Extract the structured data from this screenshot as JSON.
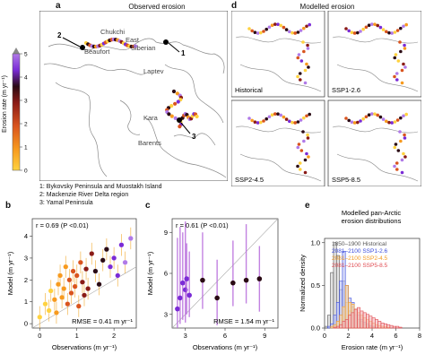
{
  "colors": {
    "scale": [
      "#ffd23f",
      "#f79a1e",
      "#d9541e",
      "#8a1b16",
      "#2a0a14",
      "#7a2bd6",
      "#b07ae8"
    ],
    "land": "#ffffff",
    "coast": "#8a8a8a",
    "line": "#999999",
    "hist": "#555555",
    "ssp126": "#3a4bdc",
    "ssp245": "#f29a22",
    "ssp585": "#e0484f",
    "ci_b": "#f2a41f",
    "ci_c": "#b86ddc"
  },
  "panel_a": {
    "letter": "a",
    "title": "Observed erosion",
    "colorbar_label": "Erosion rate (m yr⁻¹)",
    "colorbar_ticks": [
      "0",
      "1",
      "2",
      "3",
      "4",
      "5"
    ],
    "places": [
      "Chukchi",
      "East",
      "Siberian",
      "Laptev",
      "Beaufort",
      "Kara",
      "Barents"
    ],
    "markers": [
      "1",
      "2",
      "3"
    ],
    "notes": [
      "1: Bykovsky Peninsula and Muostakh Island",
      "2: Mackenzie River Delta region",
      "3: Yamal Peninsula"
    ]
  },
  "panel_d": {
    "letter": "d",
    "title": "Modelled erosion",
    "maps": [
      "Historical",
      "SSP1-2.6",
      "SSP2-4.5",
      "SSP5-8.5"
    ]
  },
  "chart_data": [
    {
      "type": "scatter",
      "panel": "b",
      "xlabel": "Observations (m yr⁻¹)",
      "ylabel": "Model (m yr⁻¹)",
      "xlim": [
        -0.2,
        2.6
      ],
      "ylim": [
        -0.2,
        4.8
      ],
      "xticks": [
        "0",
        "1",
        "2"
      ],
      "yticks": [
        "0",
        "1",
        "2",
        "3",
        "4"
      ],
      "annotation_r": "r = 0.69 (P <0.01)",
      "annotation_rmse": "RMSE = 0.41 m yr⁻¹",
      "points": [
        {
          "x": 0.0,
          "y": 0.3
        },
        {
          "x": 0.15,
          "y": 0.9
        },
        {
          "x": 0.25,
          "y": 0.6
        },
        {
          "x": 0.3,
          "y": 1.5
        },
        {
          "x": 0.4,
          "y": 1.1
        },
        {
          "x": 0.45,
          "y": 0.5
        },
        {
          "x": 0.5,
          "y": 1.8
        },
        {
          "x": 0.55,
          "y": 2.2
        },
        {
          "x": 0.6,
          "y": 1.2
        },
        {
          "x": 0.65,
          "y": 1.6
        },
        {
          "x": 0.7,
          "y": 2.6
        },
        {
          "x": 0.75,
          "y": 0.9
        },
        {
          "x": 0.8,
          "y": 2.0
        },
        {
          "x": 0.85,
          "y": 1.4
        },
        {
          "x": 0.9,
          "y": 2.4
        },
        {
          "x": 0.95,
          "y": 1.7
        },
        {
          "x": 1.0,
          "y": 2.2
        },
        {
          "x": 1.05,
          "y": 0.8
        },
        {
          "x": 1.1,
          "y": 2.8
        },
        {
          "x": 1.15,
          "y": 1.9
        },
        {
          "x": 1.2,
          "y": 1.3
        },
        {
          "x": 1.25,
          "y": 2.5
        },
        {
          "x": 1.3,
          "y": 1.6
        },
        {
          "x": 1.4,
          "y": 3.2
        },
        {
          "x": 1.5,
          "y": 2.4
        },
        {
          "x": 1.6,
          "y": 1.8
        },
        {
          "x": 1.7,
          "y": 2.9
        },
        {
          "x": 1.8,
          "y": 3.4
        },
        {
          "x": 1.9,
          "y": 2.6
        },
        {
          "x": 2.0,
          "y": 3.0
        },
        {
          "x": 2.1,
          "y": 2.2
        },
        {
          "x": 2.2,
          "y": 3.6
        },
        {
          "x": 2.3,
          "y": 2.8
        },
        {
          "x": 2.45,
          "y": 3.9
        }
      ]
    },
    {
      "type": "scatter",
      "panel": "c",
      "xlabel": "Observations (m yr⁻¹)",
      "ylabel": "Model (m yr⁻¹)",
      "xlim": [
        2.0,
        10.0
      ],
      "ylim": [
        2.0,
        10.0
      ],
      "xticks": [
        "3",
        "6",
        "9"
      ],
      "yticks": [
        "3",
        "6",
        "9"
      ],
      "annotation_r": "r = 0.61 (P <0.01)",
      "annotation_rmse": "RMSE = 1.54 m yr⁻¹",
      "points": [
        {
          "x": 2.4,
          "y": 3.4,
          "lo": 2.0,
          "hi": 8.6
        },
        {
          "x": 2.6,
          "y": 4.2,
          "lo": 2.3,
          "hi": 9.4
        },
        {
          "x": 2.8,
          "y": 5.3,
          "lo": 2.6,
          "hi": 9.0
        },
        {
          "x": 3.0,
          "y": 4.8,
          "lo": 2.4,
          "hi": 9.8
        },
        {
          "x": 3.1,
          "y": 5.6,
          "lo": 3.0,
          "hi": 8.2
        },
        {
          "x": 3.3,
          "y": 4.4,
          "lo": 2.8,
          "hi": 7.6
        },
        {
          "x": 4.3,
          "y": 5.5,
          "lo": 3.4,
          "hi": 9.0
        },
        {
          "x": 5.4,
          "y": 4.2,
          "lo": 2.2,
          "hi": 7.0
        },
        {
          "x": 6.6,
          "y": 5.3,
          "lo": 3.6,
          "hi": 8.4
        },
        {
          "x": 7.6,
          "y": 5.5,
          "lo": 3.8,
          "hi": 9.6
        },
        {
          "x": 8.6,
          "y": 5.6,
          "lo": 3.2,
          "hi": 8.0
        }
      ]
    },
    {
      "type": "histogram",
      "panel": "e",
      "title_lines": [
        "Modelled pan-Arctic",
        "erosion distributions"
      ],
      "xlabel": "Erosion rate (m yr⁻¹)",
      "ylabel": "Normalized density",
      "xlim": [
        0,
        8
      ],
      "ylim": [
        0,
        1.05
      ],
      "xticks": [
        "0",
        "2",
        "4",
        "6",
        "8"
      ],
      "yticks": [
        "0.0",
        "0.5",
        "1.0"
      ],
      "bin_width": 0.25,
      "series": [
        {
          "name": "1850–1900 Historical",
          "values": [
            0.02,
            0.15,
            0.65,
            1.0,
            0.85,
            0.45,
            0.55,
            0.3,
            0.2,
            0.25,
            0.15,
            0.1,
            0.08,
            0.05,
            0.03,
            0.02,
            0.01
          ]
        },
        {
          "name": "2081–2100 SSP1-2.6",
          "values": [
            0.0,
            0.02,
            0.05,
            0.15,
            0.3,
            0.55,
            0.9,
            0.5,
            0.35,
            0.3,
            0.22,
            0.15,
            0.1,
            0.07,
            0.05,
            0.03,
            0.02,
            0.01
          ]
        },
        {
          "name": "2081–2100 SSP2-4.5",
          "values": [
            0.0,
            0.0,
            0.02,
            0.04,
            0.08,
            0.15,
            0.25,
            0.5,
            0.3,
            0.28,
            0.22,
            0.18,
            0.15,
            0.12,
            0.1,
            0.08,
            0.06,
            0.04,
            0.03,
            0.02,
            0.02,
            0.01
          ]
        },
        {
          "name": "2081–2100 SSP5-8.5",
          "values": [
            0.0,
            0.0,
            0.0,
            0.01,
            0.02,
            0.04,
            0.08,
            0.1,
            0.15,
            0.18,
            0.22,
            0.24,
            0.2,
            0.18,
            0.16,
            0.14,
            0.12,
            0.1,
            0.08,
            0.06,
            0.05,
            0.04,
            0.03,
            0.02,
            0.02,
            0.01
          ]
        }
      ]
    }
  ]
}
